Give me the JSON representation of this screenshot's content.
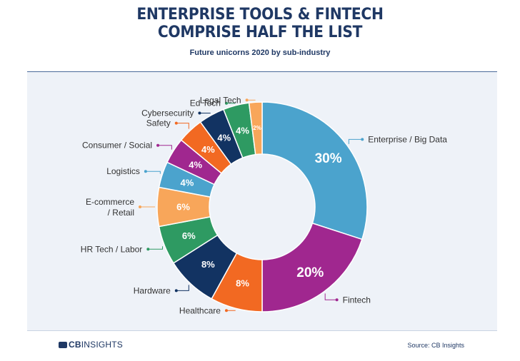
{
  "header": {
    "title_line1": "ENTERPRISE TOOLS & FINTECH",
    "title_line2": "COMPRISE HALF THE LIST",
    "subtitle": "Future unicorns 2020 by sub-industry"
  },
  "footer": {
    "logo_bold": "CB",
    "logo_text": "INSIGHTS",
    "source": "Source: CB Insights"
  },
  "chart_data": {
    "type": "pie",
    "variant": "donut",
    "title": "ENTERPRISE TOOLS & FINTECH COMPRISE HALF THE LIST",
    "subtitle": "Future unicorns 2020 by sub-industry",
    "slices": [
      {
        "label": "Enterprise / Big Data",
        "value": 30,
        "display": "30%",
        "color": "#4ba3cd"
      },
      {
        "label": "Fintech",
        "value": 20,
        "display": "20%",
        "color": "#a0278f"
      },
      {
        "label": "Healthcare",
        "value": 8,
        "display": "8%",
        "color": "#f26922"
      },
      {
        "label": "Hardware",
        "value": 8,
        "display": "8%",
        "color": "#123362"
      },
      {
        "label": "HR Tech / Labor",
        "value": 6,
        "display": "6%",
        "color": "#2e9a62"
      },
      {
        "label": "E-commerce / Retail",
        "value": 6,
        "display": "6%",
        "color": "#f8a65a"
      },
      {
        "label": "Logistics",
        "value": 4,
        "display": "4%",
        "color": "#4ba3cd"
      },
      {
        "label": "Consumer / Social",
        "value": 4,
        "display": "4%",
        "color": "#a0278f"
      },
      {
        "label": "Safety",
        "value": 4,
        "display": "4%",
        "color": "#f26922"
      },
      {
        "label": "Cybersecurity",
        "value": 4,
        "display": "4%",
        "color": "#123362"
      },
      {
        "label": "Ed Tech",
        "value": 4,
        "display": "4%",
        "color": "#2e9a62"
      },
      {
        "label": "Legal Tech",
        "value": 2,
        "display": "2%",
        "color": "#f8a65a"
      }
    ]
  }
}
